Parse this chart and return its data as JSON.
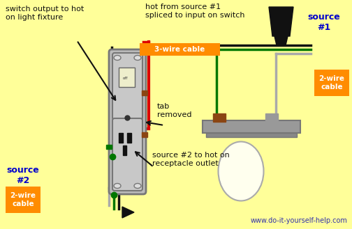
{
  "bg_color": "#FFFF99",
  "watermark": "www.do-it-yourself-help.com",
  "labels": {
    "top_left": "switch output to hot\non light fixture",
    "top_center": "hot from source #1\nspliced to input on switch",
    "source1_title": "source\n#1",
    "source1_cable": "2-wire\ncable",
    "source2_title": "source\n#2",
    "source2_cable": "2-wire\ncable",
    "three_wire": "3-wire cable",
    "tab_removed": "tab\nremoved",
    "source2_hot": "source #2 to hot on\nreceptacle outlet"
  },
  "colors": {
    "orange": "#FF8C00",
    "blue": "#0000CC",
    "black": "#111111",
    "red": "#DD0000",
    "green": "#007700",
    "gray": "#AAAAAA",
    "dark_gray": "#888888",
    "device_gray": "#BBBBBB",
    "device_border": "#777777",
    "brown": "#8B4513",
    "white_screw": "#DDDDDD",
    "bulb_fill": "#FFFFEE",
    "lamp_shade_black": "#111111"
  },
  "wire_lw": 2.5
}
